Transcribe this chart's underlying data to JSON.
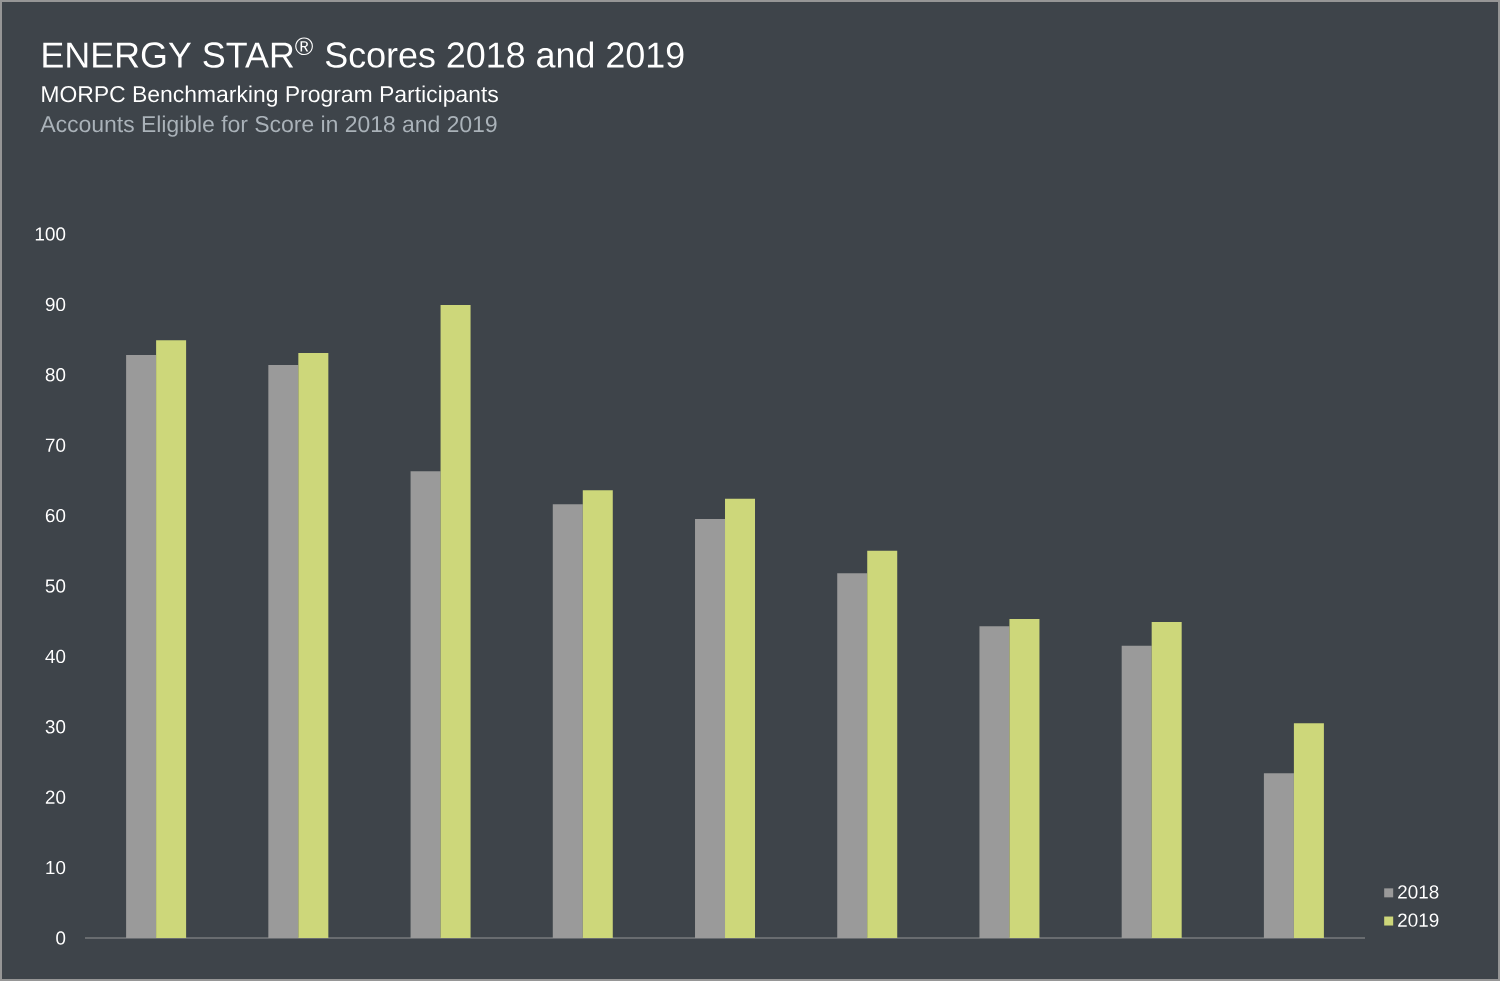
{
  "chart_data": {
    "type": "bar",
    "title": "ENERGY STAR$^{®}$ Scores 2018 and 2019",
    "subtitle": "MORPC Benchmarking Program Participants",
    "annotations": [
      "Accounts Eligible for Score in 2018 and 2019"
    ],
    "categories": [
      null,
      null,
      null,
      null,
      null,
      null,
      null,
      null,
      null
    ],
    "series": [
      {
        "name": "2018",
        "color": "#9a9a9a",
        "values": [
          82.8,
          81.4,
          66.3,
          61.6,
          59.5,
          51.8,
          44.3,
          41.5,
          23.4
        ]
      },
      {
        "name": "2019",
        "color": "#cdd77a",
        "values": [
          84.9,
          83.1,
          89.9,
          63.6,
          62.4,
          55.0,
          45.3,
          44.9,
          30.5
        ]
      }
    ],
    "ylim": [
      0,
      100
    ],
    "yticks": [
      0,
      10,
      20,
      30,
      40,
      50,
      60,
      70,
      80,
      90,
      100
    ],
    "legend": "bottom right"
  }
}
